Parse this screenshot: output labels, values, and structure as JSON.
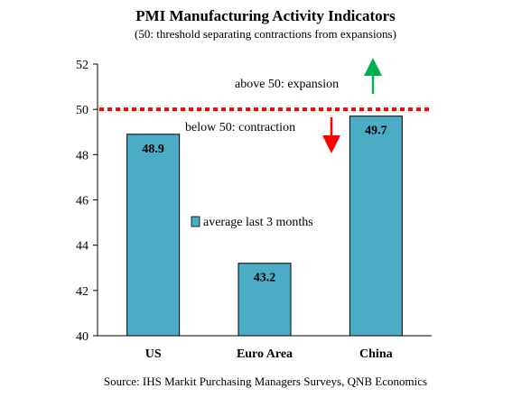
{
  "chart_data": {
    "type": "bar",
    "title": "PMI Manufacturing Activity Indicators",
    "subtitle": "(50: threshold separating contractions from expansions)",
    "categories": [
      "US",
      "Euro Area",
      "China"
    ],
    "series": [
      {
        "name": "average last 3 months",
        "values": [
          48.9,
          43.2,
          49.7
        ]
      }
    ],
    "data_labels": [
      "48.9",
      "43.2",
      "49.7"
    ],
    "ylim": [
      40,
      52
    ],
    "yticks": [
      "40",
      "42",
      "44",
      "46",
      "48",
      "50",
      "52"
    ],
    "threshold": 50,
    "annotations": {
      "above": "above 50: expansion",
      "below": "below 50: contraction"
    },
    "source": "Source: IHS Markit Purchasing Managers Surveys, QNB Economics",
    "grid": false,
    "legend_position": "center"
  },
  "colors": {
    "bar_fill": "#4bacc6",
    "bar_stroke": "#000000",
    "threshold_line": "#ff0000",
    "up_arrow": "#00b050",
    "down_arrow": "#ff0000"
  }
}
